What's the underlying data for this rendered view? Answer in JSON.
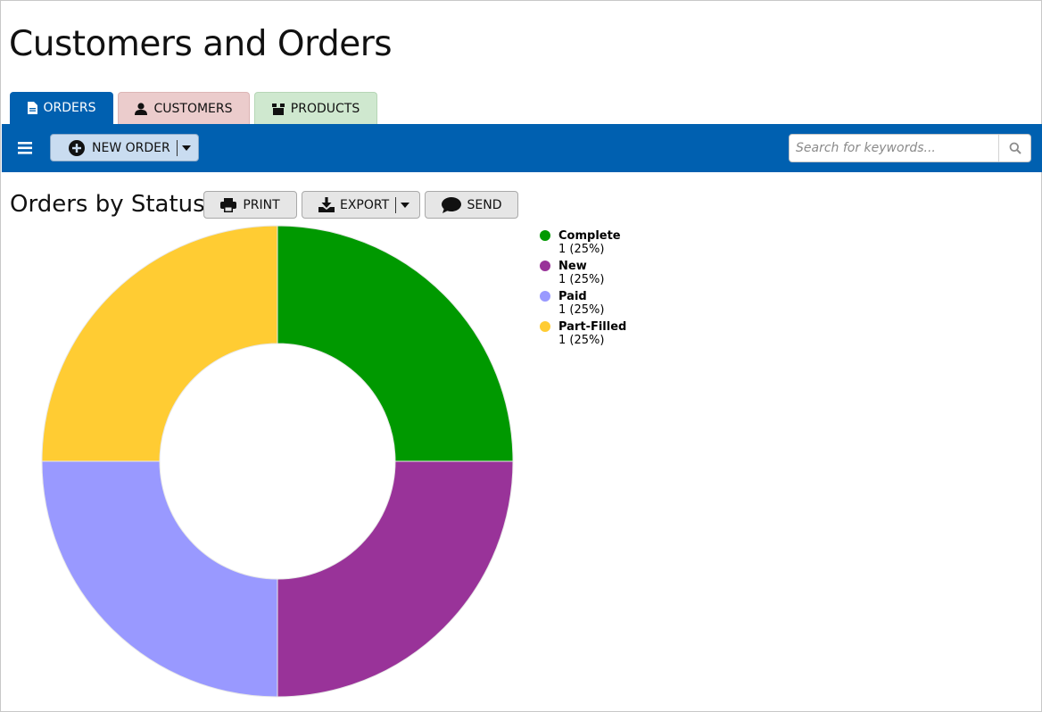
{
  "app": {
    "title": "Customers and Orders"
  },
  "tabs": [
    {
      "label": "ORDERS",
      "icon": "document-icon",
      "active": true,
      "color": "#0060b0"
    },
    {
      "label": "CUSTOMERS",
      "icon": "user-icon",
      "active": false,
      "color": "#ebcccc"
    },
    {
      "label": "PRODUCTS",
      "icon": "box-icon",
      "active": false,
      "color": "#cfe8cf"
    }
  ],
  "toolbar": {
    "color": "#0060b0",
    "menu_icon": "hamburger-icon",
    "new_order_label": "NEW ORDER",
    "new_order_icon": "plus-circle-icon",
    "search": {
      "placeholder": "Search for keywords...",
      "value": "",
      "icon": "search-icon"
    }
  },
  "section": {
    "title": "Orders by Status",
    "actions": {
      "print": "PRINT",
      "export": "EXPORT",
      "send": "SEND"
    }
  },
  "chart_data": {
    "type": "pie",
    "variant": "donut",
    "title": "",
    "legend_position": "right",
    "slices": [
      {
        "label": "Complete",
        "value": 1,
        "percent": "25%",
        "color": "#009900"
      },
      {
        "label": "New",
        "value": 1,
        "percent": "25%",
        "color": "#993399"
      },
      {
        "label": "Paid",
        "value": 1,
        "percent": "25%",
        "color": "#9999ff"
      },
      {
        "label": "Part-Filled",
        "value": 1,
        "percent": "25%",
        "color": "#ffcc33"
      }
    ]
  }
}
